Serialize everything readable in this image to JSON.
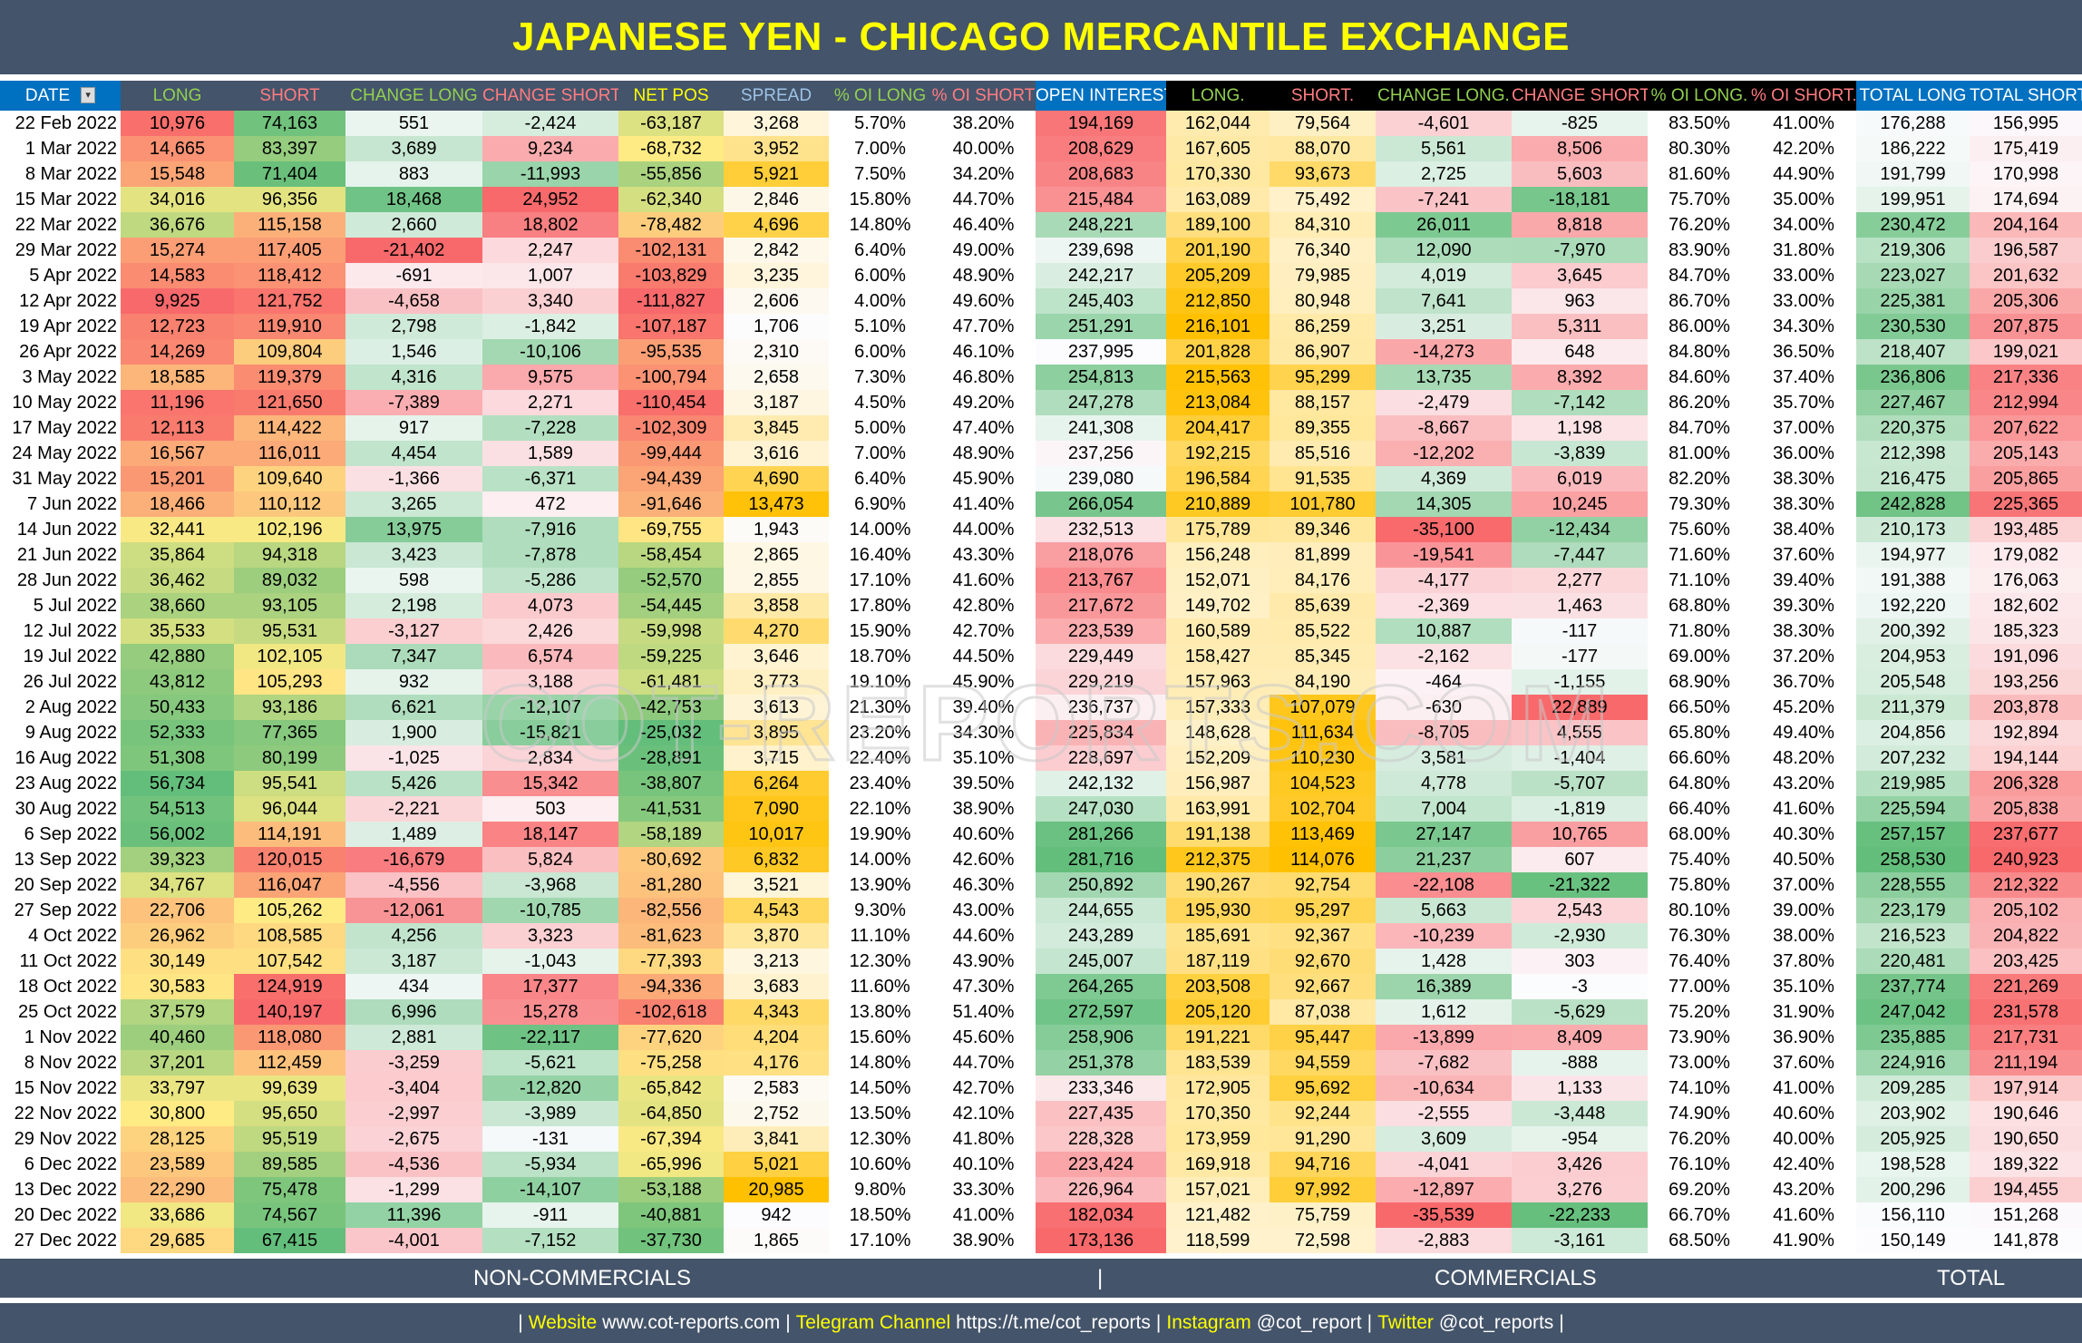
{
  "title": "JAPANESE YEN - CHICAGO MERCANTILE EXCHANGE",
  "watermark": "COT-REPORTS.COM",
  "headers": [
    {
      "label": "DATE",
      "color": "#ffffff",
      "group": "bl"
    },
    {
      "label": "LONG",
      "color": "#92d050",
      "group": "nc"
    },
    {
      "label": "SHORT",
      "color": "#ff7c80",
      "group": "nc"
    },
    {
      "label": "CHANGE LONG",
      "color": "#92d050",
      "group": "nc"
    },
    {
      "label": "CHANGE SHORT",
      "color": "#ff7c80",
      "group": "nc"
    },
    {
      "label": "NET POS",
      "color": "#ffff00",
      "group": "nc"
    },
    {
      "label": "SPREAD",
      "color": "#9dc3e6",
      "group": "nc"
    },
    {
      "label": "% OI LONG",
      "color": "#92d050",
      "group": "nc"
    },
    {
      "label": "% OI SHORT",
      "color": "#ff7c80",
      "group": "nc"
    },
    {
      "label": "OPEN INTEREST",
      "color": "#ffffff",
      "group": "bl"
    },
    {
      "label": "LONG.",
      "color": "#92d050",
      "group": "cm"
    },
    {
      "label": "SHORT.",
      "color": "#ff7c80",
      "group": "cm"
    },
    {
      "label": "CHANGE LONG.",
      "color": "#92d050",
      "group": "cm"
    },
    {
      "label": "CHANGE SHORT.",
      "color": "#ff7c80",
      "group": "cm"
    },
    {
      "label": "% OI LONG.",
      "color": "#92d050",
      "group": "cm"
    },
    {
      "label": "% OI SHORT.",
      "color": "#ff7c80",
      "group": "cm"
    },
    {
      "label": "TOTAL LONG",
      "color": "#ffffff",
      "group": "bl"
    },
    {
      "label": "TOTAL SHORT",
      "color": "#ffffff",
      "group": "bl"
    }
  ],
  "color_scales": [
    "none",
    "rgy",
    "gyr",
    "rwg",
    "gwr",
    "rgy",
    "wo",
    "none",
    "none",
    "rwg",
    "yo",
    "yo",
    "rwg",
    "gwr",
    "none",
    "none",
    "wg",
    "wr"
  ],
  "colors": {
    "red": "#f8696b",
    "yellow": "#ffeb84",
    "green": "#63be7b",
    "white": "#fcfcff",
    "light_yellow": "#fff2cc",
    "orange": "#ffc000"
  },
  "rows": [
    [
      "22 Feb 2022",
      "10,976",
      "74,163",
      "551",
      "-2,424",
      "-63,187",
      "3,268",
      "5.70%",
      "38.20%",
      "194,169",
      "162,044",
      "79,564",
      "-4,601",
      "-825",
      "83.50%",
      "41.00%",
      "176,288",
      "156,995"
    ],
    [
      "1 Mar 2022",
      "14,665",
      "83,397",
      "3,689",
      "9,234",
      "-68,732",
      "3,952",
      "7.00%",
      "40.00%",
      "208,629",
      "167,605",
      "88,070",
      "5,561",
      "8,506",
      "80.30%",
      "42.20%",
      "186,222",
      "175,419"
    ],
    [
      "8 Mar 2022",
      "15,548",
      "71,404",
      "883",
      "-11,993",
      "-55,856",
      "5,921",
      "7.50%",
      "34.20%",
      "208,683",
      "170,330",
      "93,673",
      "2,725",
      "5,603",
      "81.60%",
      "44.90%",
      "191,799",
      "170,998"
    ],
    [
      "15 Mar 2022",
      "34,016",
      "96,356",
      "18,468",
      "24,952",
      "-62,340",
      "2,846",
      "15.80%",
      "44.70%",
      "215,484",
      "163,089",
      "75,492",
      "-7,241",
      "-18,181",
      "75.70%",
      "35.00%",
      "199,951",
      "174,694"
    ],
    [
      "22 Mar 2022",
      "36,676",
      "115,158",
      "2,660",
      "18,802",
      "-78,482",
      "4,696",
      "14.80%",
      "46.40%",
      "248,221",
      "189,100",
      "84,310",
      "26,011",
      "8,818",
      "76.20%",
      "34.00%",
      "230,472",
      "204,164"
    ],
    [
      "29 Mar 2022",
      "15,274",
      "117,405",
      "-21,402",
      "2,247",
      "-102,131",
      "2,842",
      "6.40%",
      "49.00%",
      "239,698",
      "201,190",
      "76,340",
      "12,090",
      "-7,970",
      "83.90%",
      "31.80%",
      "219,306",
      "196,587"
    ],
    [
      "5 Apr 2022",
      "14,583",
      "118,412",
      "-691",
      "1,007",
      "-103,829",
      "3,235",
      "6.00%",
      "48.90%",
      "242,217",
      "205,209",
      "79,985",
      "4,019",
      "3,645",
      "84.70%",
      "33.00%",
      "223,027",
      "201,632"
    ],
    [
      "12 Apr 2022",
      "9,925",
      "121,752",
      "-4,658",
      "3,340",
      "-111,827",
      "2,606",
      "4.00%",
      "49.60%",
      "245,403",
      "212,850",
      "80,948",
      "7,641",
      "963",
      "86.70%",
      "33.00%",
      "225,381",
      "205,306"
    ],
    [
      "19 Apr 2022",
      "12,723",
      "119,910",
      "2,798",
      "-1,842",
      "-107,187",
      "1,706",
      "5.10%",
      "47.70%",
      "251,291",
      "216,101",
      "86,259",
      "3,251",
      "5,311",
      "86.00%",
      "34.30%",
      "230,530",
      "207,875"
    ],
    [
      "26 Apr 2022",
      "14,269",
      "109,804",
      "1,546",
      "-10,106",
      "-95,535",
      "2,310",
      "6.00%",
      "46.10%",
      "237,995",
      "201,828",
      "86,907",
      "-14,273",
      "648",
      "84.80%",
      "36.50%",
      "218,407",
      "199,021"
    ],
    [
      "3 May 2022",
      "18,585",
      "119,379",
      "4,316",
      "9,575",
      "-100,794",
      "2,658",
      "7.30%",
      "46.80%",
      "254,813",
      "215,563",
      "95,299",
      "13,735",
      "8,392",
      "84.60%",
      "37.40%",
      "236,806",
      "217,336"
    ],
    [
      "10 May 2022",
      "11,196",
      "121,650",
      "-7,389",
      "2,271",
      "-110,454",
      "3,187",
      "4.50%",
      "49.20%",
      "247,278",
      "213,084",
      "88,157",
      "-2,479",
      "-7,142",
      "86.20%",
      "35.70%",
      "227,467",
      "212,994"
    ],
    [
      "17 May 2022",
      "12,113",
      "114,422",
      "917",
      "-7,228",
      "-102,309",
      "3,845",
      "5.00%",
      "47.40%",
      "241,308",
      "204,417",
      "89,355",
      "-8,667",
      "1,198",
      "84.70%",
      "37.00%",
      "220,375",
      "207,622"
    ],
    [
      "24 May 2022",
      "16,567",
      "116,011",
      "4,454",
      "1,589",
      "-99,444",
      "3,616",
      "7.00%",
      "48.90%",
      "237,256",
      "192,215",
      "85,516",
      "-12,202",
      "-3,839",
      "81.00%",
      "36.00%",
      "212,398",
      "205,143"
    ],
    [
      "31 May 2022",
      "15,201",
      "109,640",
      "-1,366",
      "-6,371",
      "-94,439",
      "4,690",
      "6.40%",
      "45.90%",
      "239,080",
      "196,584",
      "91,535",
      "4,369",
      "6,019",
      "82.20%",
      "38.30%",
      "216,475",
      "205,865"
    ],
    [
      "7 Jun 2022",
      "18,466",
      "110,112",
      "3,265",
      "472",
      "-91,646",
      "13,473",
      "6.90%",
      "41.40%",
      "266,054",
      "210,889",
      "101,780",
      "14,305",
      "10,245",
      "79.30%",
      "38.30%",
      "242,828",
      "225,365"
    ],
    [
      "14 Jun 2022",
      "32,441",
      "102,196",
      "13,975",
      "-7,916",
      "-69,755",
      "1,943",
      "14.00%",
      "44.00%",
      "232,513",
      "175,789",
      "89,346",
      "-35,100",
      "-12,434",
      "75.60%",
      "38.40%",
      "210,173",
      "193,485"
    ],
    [
      "21 Jun 2022",
      "35,864",
      "94,318",
      "3,423",
      "-7,878",
      "-58,454",
      "2,865",
      "16.40%",
      "43.30%",
      "218,076",
      "156,248",
      "81,899",
      "-19,541",
      "-7,447",
      "71.60%",
      "37.60%",
      "194,977",
      "179,082"
    ],
    [
      "28 Jun 2022",
      "36,462",
      "89,032",
      "598",
      "-5,286",
      "-52,570",
      "2,855",
      "17.10%",
      "41.60%",
      "213,767",
      "152,071",
      "84,176",
      "-4,177",
      "2,277",
      "71.10%",
      "39.40%",
      "191,388",
      "176,063"
    ],
    [
      "5 Jul 2022",
      "38,660",
      "93,105",
      "2,198",
      "4,073",
      "-54,445",
      "3,858",
      "17.80%",
      "42.80%",
      "217,672",
      "149,702",
      "85,639",
      "-2,369",
      "1,463",
      "68.80%",
      "39.30%",
      "192,220",
      "182,602"
    ],
    [
      "12 Jul 2022",
      "35,533",
      "95,531",
      "-3,127",
      "2,426",
      "-59,998",
      "4,270",
      "15.90%",
      "42.70%",
      "223,539",
      "160,589",
      "85,522",
      "10,887",
      "-117",
      "71.80%",
      "38.30%",
      "200,392",
      "185,323"
    ],
    [
      "19 Jul 2022",
      "42,880",
      "102,105",
      "7,347",
      "6,574",
      "-59,225",
      "3,646",
      "18.70%",
      "44.50%",
      "229,449",
      "158,427",
      "85,345",
      "-2,162",
      "-177",
      "69.00%",
      "37.20%",
      "204,953",
      "191,096"
    ],
    [
      "26 Jul 2022",
      "43,812",
      "105,293",
      "932",
      "3,188",
      "-61,481",
      "3,773",
      "19.10%",
      "45.90%",
      "229,219",
      "157,963",
      "84,190",
      "-464",
      "-1,155",
      "68.90%",
      "36.70%",
      "205,548",
      "193,256"
    ],
    [
      "2 Aug 2022",
      "50,433",
      "93,186",
      "6,621",
      "-12,107",
      "-42,753",
      "3,613",
      "21.30%",
      "39.40%",
      "236,737",
      "157,333",
      "107,079",
      "-630",
      "22,889",
      "66.50%",
      "45.20%",
      "211,379",
      "203,878"
    ],
    [
      "9 Aug 2022",
      "52,333",
      "77,365",
      "1,900",
      "-15,821",
      "-25,032",
      "3,895",
      "23.20%",
      "34.30%",
      "225,834",
      "148,628",
      "111,634",
      "-8,705",
      "4,555",
      "65.80%",
      "49.40%",
      "204,856",
      "192,894"
    ],
    [
      "16 Aug 2022",
      "51,308",
      "80,199",
      "-1,025",
      "2,834",
      "-28,891",
      "3,715",
      "22.40%",
      "35.10%",
      "228,697",
      "152,209",
      "110,230",
      "3,581",
      "-1,404",
      "66.60%",
      "48.20%",
      "207,232",
      "194,144"
    ],
    [
      "23 Aug 2022",
      "56,734",
      "95,541",
      "5,426",
      "15,342",
      "-38,807",
      "6,264",
      "23.40%",
      "39.50%",
      "242,132",
      "156,987",
      "104,523",
      "4,778",
      "-5,707",
      "64.80%",
      "43.20%",
      "219,985",
      "206,328"
    ],
    [
      "30 Aug 2022",
      "54,513",
      "96,044",
      "-2,221",
      "503",
      "-41,531",
      "7,090",
      "22.10%",
      "38.90%",
      "247,030",
      "163,991",
      "102,704",
      "7,004",
      "-1,819",
      "66.40%",
      "41.60%",
      "225,594",
      "205,838"
    ],
    [
      "6 Sep 2022",
      "56,002",
      "114,191",
      "1,489",
      "18,147",
      "-58,189",
      "10,017",
      "19.90%",
      "40.60%",
      "281,266",
      "191,138",
      "113,469",
      "27,147",
      "10,765",
      "68.00%",
      "40.30%",
      "257,157",
      "237,677"
    ],
    [
      "13 Sep 2022",
      "39,323",
      "120,015",
      "-16,679",
      "5,824",
      "-80,692",
      "6,832",
      "14.00%",
      "42.60%",
      "281,716",
      "212,375",
      "114,076",
      "21,237",
      "607",
      "75.40%",
      "40.50%",
      "258,530",
      "240,923"
    ],
    [
      "20 Sep 2022",
      "34,767",
      "116,047",
      "-4,556",
      "-3,968",
      "-81,280",
      "3,521",
      "13.90%",
      "46.30%",
      "250,892",
      "190,267",
      "92,754",
      "-22,108",
      "-21,322",
      "75.80%",
      "37.00%",
      "228,555",
      "212,322"
    ],
    [
      "27 Sep 2022",
      "22,706",
      "105,262",
      "-12,061",
      "-10,785",
      "-82,556",
      "4,543",
      "9.30%",
      "43.00%",
      "244,655",
      "195,930",
      "95,297",
      "5,663",
      "2,543",
      "80.10%",
      "39.00%",
      "223,179",
      "205,102"
    ],
    [
      "4 Oct 2022",
      "26,962",
      "108,585",
      "4,256",
      "3,323",
      "-81,623",
      "3,870",
      "11.10%",
      "44.60%",
      "243,289",
      "185,691",
      "92,367",
      "-10,239",
      "-2,930",
      "76.30%",
      "38.00%",
      "216,523",
      "204,822"
    ],
    [
      "11 Oct 2022",
      "30,149",
      "107,542",
      "3,187",
      "-1,043",
      "-77,393",
      "3,213",
      "12.30%",
      "43.90%",
      "245,007",
      "187,119",
      "92,670",
      "1,428",
      "303",
      "76.40%",
      "37.80%",
      "220,481",
      "203,425"
    ],
    [
      "18 Oct 2022",
      "30,583",
      "124,919",
      "434",
      "17,377",
      "-94,336",
      "3,683",
      "11.60%",
      "47.30%",
      "264,265",
      "203,508",
      "92,667",
      "16,389",
      "-3",
      "77.00%",
      "35.10%",
      "237,774",
      "221,269"
    ],
    [
      "25 Oct 2022",
      "37,579",
      "140,197",
      "6,996",
      "15,278",
      "-102,618",
      "4,343",
      "13.80%",
      "51.40%",
      "272,597",
      "205,120",
      "87,038",
      "1,612",
      "-5,629",
      "75.20%",
      "31.90%",
      "247,042",
      "231,578"
    ],
    [
      "1 Nov 2022",
      "40,460",
      "118,080",
      "2,881",
      "-22,117",
      "-77,620",
      "4,204",
      "15.60%",
      "45.60%",
      "258,906",
      "191,221",
      "95,447",
      "-13,899",
      "8,409",
      "73.90%",
      "36.90%",
      "235,885",
      "217,731"
    ],
    [
      "8 Nov 2022",
      "37,201",
      "112,459",
      "-3,259",
      "-5,621",
      "-75,258",
      "4,176",
      "14.80%",
      "44.70%",
      "251,378",
      "183,539",
      "94,559",
      "-7,682",
      "-888",
      "73.00%",
      "37.60%",
      "224,916",
      "211,194"
    ],
    [
      "15 Nov 2022",
      "33,797",
      "99,639",
      "-3,404",
      "-12,820",
      "-65,842",
      "2,583",
      "14.50%",
      "42.70%",
      "233,346",
      "172,905",
      "95,692",
      "-10,634",
      "1,133",
      "74.10%",
      "41.00%",
      "209,285",
      "197,914"
    ],
    [
      "22 Nov 2022",
      "30,800",
      "95,650",
      "-2,997",
      "-3,989",
      "-64,850",
      "2,752",
      "13.50%",
      "42.10%",
      "227,435",
      "170,350",
      "92,244",
      "-2,555",
      "-3,448",
      "74.90%",
      "40.60%",
      "203,902",
      "190,646"
    ],
    [
      "29 Nov 2022",
      "28,125",
      "95,519",
      "-2,675",
      "-131",
      "-67,394",
      "3,841",
      "12.30%",
      "41.80%",
      "228,328",
      "173,959",
      "91,290",
      "3,609",
      "-954",
      "76.20%",
      "40.00%",
      "205,925",
      "190,650"
    ],
    [
      "6 Dec 2022",
      "23,589",
      "89,585",
      "-4,536",
      "-5,934",
      "-65,996",
      "5,021",
      "10.60%",
      "40.10%",
      "223,424",
      "169,918",
      "94,716",
      "-4,041",
      "3,426",
      "76.10%",
      "42.40%",
      "198,528",
      "189,322"
    ],
    [
      "13 Dec 2022",
      "22,290",
      "75,478",
      "-1,299",
      "-14,107",
      "-53,188",
      "20,985",
      "9.80%",
      "33.30%",
      "226,964",
      "157,021",
      "97,992",
      "-12,897",
      "3,276",
      "69.20%",
      "43.20%",
      "200,296",
      "194,455"
    ],
    [
      "20 Dec 2022",
      "33,686",
      "74,567",
      "11,396",
      "-911",
      "-40,881",
      "942",
      "18.50%",
      "41.00%",
      "182,034",
      "121,482",
      "75,759",
      "-35,539",
      "-22,233",
      "66.70%",
      "41.60%",
      "156,110",
      "151,268"
    ],
    [
      "27 Dec 2022",
      "29,685",
      "67,415",
      "-4,001",
      "-7,152",
      "-37,730",
      "1,865",
      "17.10%",
      "38.90%",
      "173,136",
      "118,599",
      "72,598",
      "-2,883",
      "-3,161",
      "68.50%",
      "41.90%",
      "150,149",
      "141,878"
    ]
  ],
  "footer_sections": {
    "noncommercials": "NON-COMMERCIALS",
    "separator": "|",
    "commercials": "COMMERCIALS",
    "total": "TOTAL"
  },
  "links": [
    {
      "label": "Website",
      "value": "www.cot-reports.com"
    },
    {
      "label": "Telegram Channel",
      "value": "https://t.me/cot_reports"
    },
    {
      "label": "Instagram",
      "value": "@cot_report"
    },
    {
      "label": "Twitter",
      "value": "@cot_reports"
    }
  ]
}
